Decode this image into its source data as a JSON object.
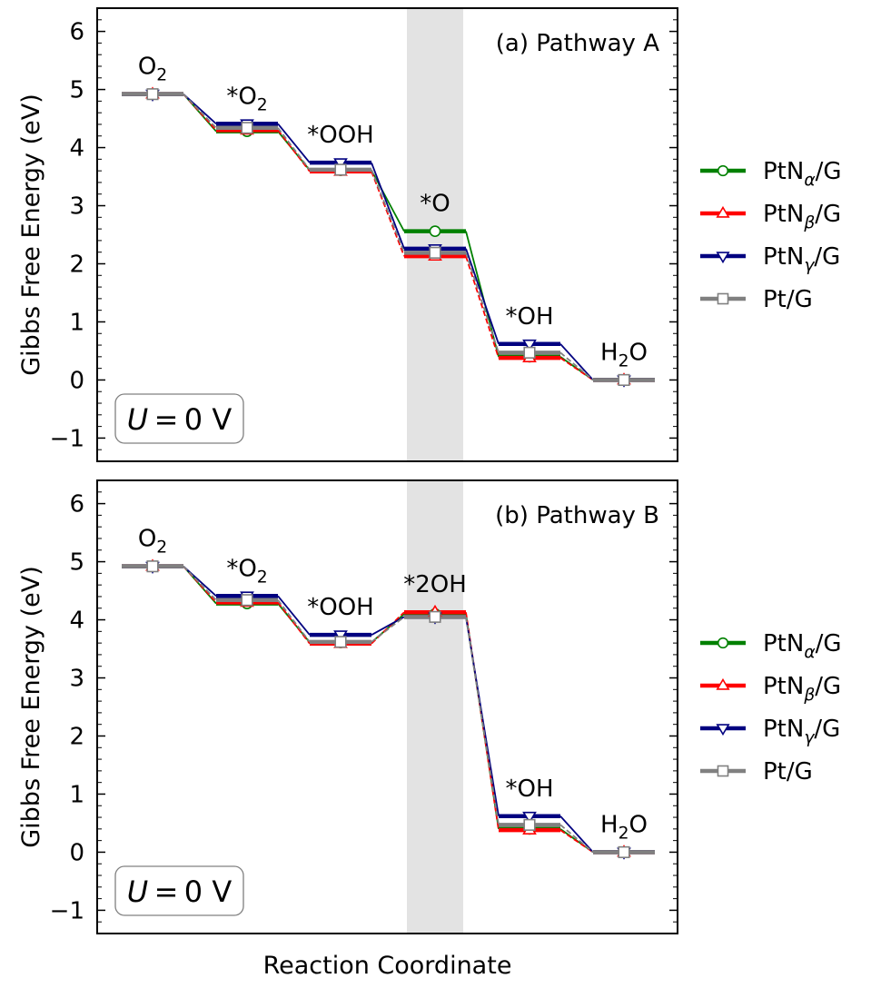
{
  "chart_data": [
    {
      "type": "line",
      "title": "(a) Pathway A",
      "xlabel": "",
      "ylabel": "Gibbs Free Energy (eV)",
      "ylim": [
        -1.4,
        6.4
      ],
      "yticks": [
        -1,
        0,
        1,
        2,
        3,
        4,
        5,
        6
      ],
      "grid": false,
      "legend": "right",
      "highlight_step": 3,
      "annotation": "U = 0 V",
      "states": [
        "O2",
        "*O2",
        "*OOH",
        "*O",
        "*OH",
        "H2O"
      ],
      "series": [
        {
          "name": "PtNα/G",
          "color": "#008000",
          "marker": "circle",
          "values": [
            4.92,
            4.28,
            3.61,
            2.56,
            0.4,
            0.0
          ]
        },
        {
          "name": "PtNβ/G",
          "color": "#ff0000",
          "marker": "triangle-up",
          "values": [
            4.92,
            4.3,
            3.59,
            2.13,
            0.38,
            0.0
          ]
        },
        {
          "name": "PtNγ/G",
          "color": "#000080",
          "marker": "triangle-down",
          "values": [
            4.92,
            4.41,
            3.74,
            2.26,
            0.62,
            0.0
          ]
        },
        {
          "name": "Pt/G",
          "color": "#808080",
          "marker": "square",
          "values": [
            4.92,
            4.34,
            3.62,
            2.19,
            0.47,
            0.0
          ]
        }
      ]
    },
    {
      "type": "line",
      "title": "(b) Pathway B",
      "xlabel": "Reaction Coordinate",
      "ylabel": "Gibbs Free Energy (eV)",
      "ylim": [
        -1.4,
        6.4
      ],
      "yticks": [
        -1,
        0,
        1,
        2,
        3,
        4,
        5,
        6
      ],
      "grid": false,
      "legend": "right",
      "highlight_step": 3,
      "annotation": "U = 0 V",
      "states": [
        "O2",
        "*O2",
        "*OOH",
        "*2OH",
        "*OH",
        "H2O"
      ],
      "series": [
        {
          "name": "PtNα/G",
          "color": "#008000",
          "marker": "circle",
          "values": [
            4.92,
            4.28,
            3.61,
            4.1,
            0.4,
            0.0
          ]
        },
        {
          "name": "PtNβ/G",
          "color": "#ff0000",
          "marker": "triangle-up",
          "values": [
            4.92,
            4.3,
            3.59,
            4.13,
            0.38,
            0.0
          ]
        },
        {
          "name": "PtNγ/G",
          "color": "#000080",
          "marker": "triangle-down",
          "values": [
            4.92,
            4.41,
            3.74,
            4.05,
            0.62,
            0.0
          ]
        },
        {
          "name": "Pt/G",
          "color": "#808080",
          "marker": "square",
          "values": [
            4.92,
            4.34,
            3.62,
            4.05,
            0.47,
            0.0
          ]
        }
      ]
    }
  ]
}
